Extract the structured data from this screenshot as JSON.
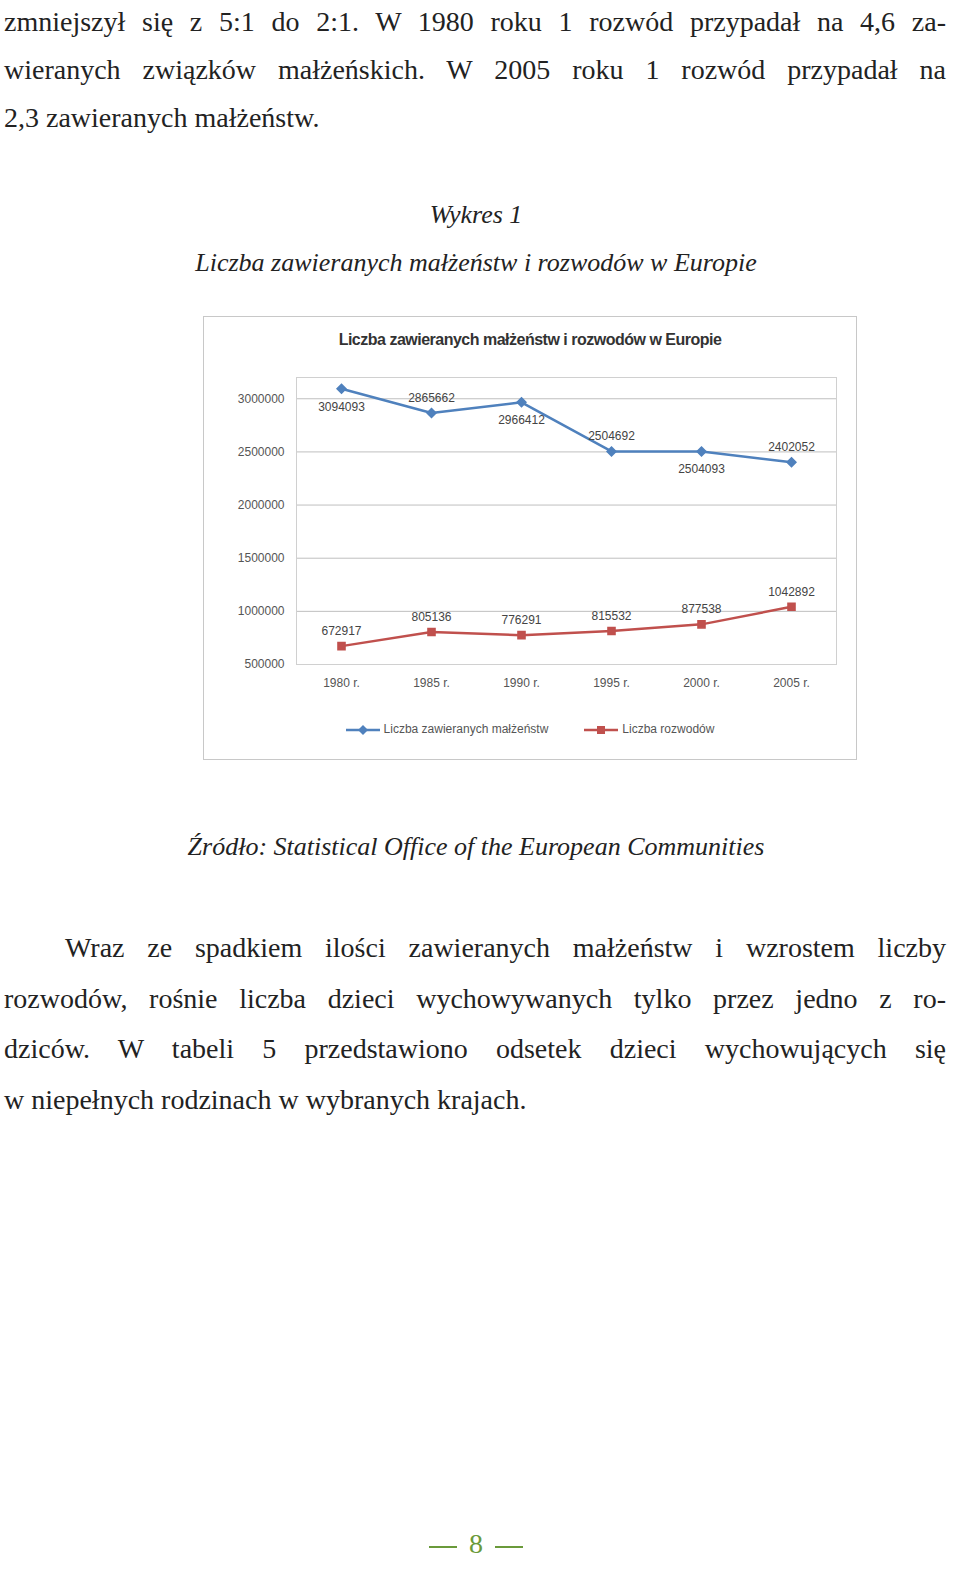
{
  "document": {
    "text_top": [
      "zmniejszył się z 5:1 do 2:1. W 1980 roku 1 rozwód przypadał na 4,6 za-",
      "wieranych związków małżeńskich. W 2005 roku 1 rozwód przypadał na",
      "2,3 zawieranych małżeństw."
    ],
    "figure_label": "Wykres 1",
    "figure_caption": "Liczba zawieranych małżeństw i rozwodów w Europie",
    "source": "Źródło: Statistical Office of the European Communities",
    "text_bottom": [
      "Wraz ze spadkiem ilości zawieranych małżeństw i wzrostem liczby",
      "rozwodów, rośnie liczba dzieci wychowywanych tylko przez jedno z ro-",
      "dziców. W tabeli 5 przedstawiono odsetek dzieci wychowujących się",
      "w niepełnych rodzinach w wybranych krajach."
    ],
    "page_number": "8"
  },
  "chart_data": {
    "type": "line",
    "title": "Liczba zawieranych małżeństw i rozwodów w Europie",
    "categories": [
      "1980 r.",
      "1985 r.",
      "1990 r.",
      "1995 r.",
      "2000 r.",
      "2005 r."
    ],
    "series": [
      {
        "name": "Liczba zawieranych małżeństw",
        "color": "#4f81bd",
        "marker": "diamond",
        "values": [
          3094093,
          2865662,
          2966412,
          2504692,
          2504093,
          2402052
        ]
      },
      {
        "name": "Liczba rozwodów",
        "color": "#c0504d",
        "marker": "square",
        "values": [
          672917,
          805136,
          776291,
          815532,
          877538,
          1042892
        ]
      }
    ],
    "ylim": [
      500000,
      3200000
    ],
    "yticks": [
      500000,
      1000000,
      1500000,
      2000000,
      2500000,
      3000000
    ],
    "grid": true,
    "data_labels": true,
    "legend": "bottom"
  }
}
